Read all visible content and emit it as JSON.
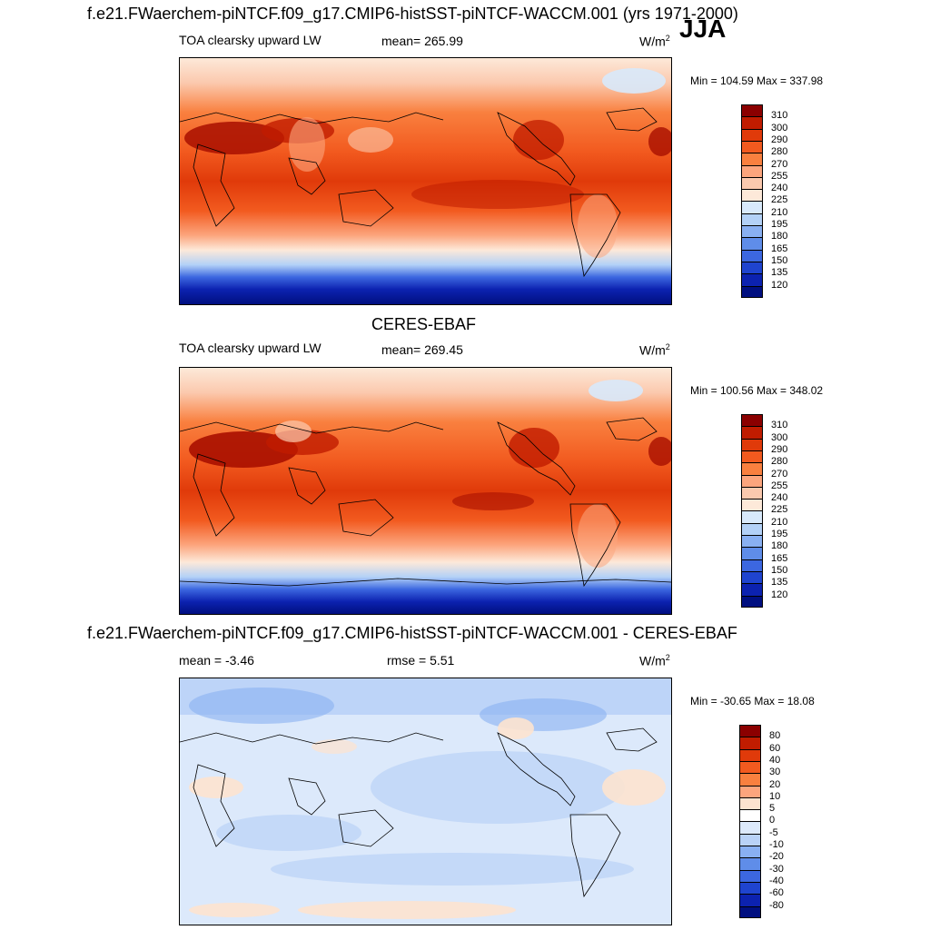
{
  "header": {
    "main_title": "f.e21.FWaerchem-piNTCF.f09_g17.CMIP6-histSST-piNTCF-WACCM.001 (yrs 1971-2000)",
    "season": "JJA"
  },
  "panels": [
    {
      "id": "model",
      "title": "",
      "left_label": "TOA clearsky upward LW",
      "center_label": "mean= 265.99",
      "rmse_label": "",
      "units_base": "W/m",
      "units_exp": "2",
      "minmax": "Min = 104.59 Max = 337.98",
      "colorbar": {
        "ticks": [
          "310",
          "300",
          "290",
          "280",
          "270",
          "255",
          "240",
          "225",
          "210",
          "195",
          "180",
          "165",
          "150",
          "135",
          "120"
        ],
        "colors": [
          "#8b0000",
          "#c01c00",
          "#e03a0a",
          "#f25a1f",
          "#f9803f",
          "#fca57d",
          "#fbc9ae",
          "#fde9d9",
          "#d8e9fb",
          "#b3d1f7",
          "#89b0f2",
          "#5f8de9",
          "#3c67e0",
          "#1f44cf",
          "#0c22b0",
          "#000f80"
        ]
      }
    },
    {
      "id": "obs",
      "title": "CERES-EBAF",
      "left_label": "TOA clearsky upward LW",
      "center_label": "mean= 269.45",
      "rmse_label": "",
      "units_base": "W/m",
      "units_exp": "2",
      "minmax": "Min = 100.56 Max = 348.02",
      "colorbar": {
        "ticks": [
          "310",
          "300",
          "290",
          "280",
          "270",
          "255",
          "240",
          "225",
          "210",
          "195",
          "180",
          "165",
          "150",
          "135",
          "120"
        ],
        "colors": [
          "#8b0000",
          "#c01c00",
          "#e03a0a",
          "#f25a1f",
          "#f9803f",
          "#fca57d",
          "#fbc9ae",
          "#fde9d9",
          "#d8e9fb",
          "#b3d1f7",
          "#89b0f2",
          "#5f8de9",
          "#3c67e0",
          "#1f44cf",
          "#0c22b0",
          "#000f80"
        ]
      }
    },
    {
      "id": "diff",
      "title": "f.e21.FWaerchem-piNTCF.f09_g17.CMIP6-histSST-piNTCF-WACCM.001 - CERES-EBAF",
      "left_label": "mean =  -3.46",
      "center_label": "rmse =   5.51",
      "rmse_label": "",
      "units_base": "W/m",
      "units_exp": "2",
      "minmax": "Min = -30.65 Max =  18.08",
      "colorbar": {
        "ticks": [
          "80",
          "60",
          "40",
          "30",
          "20",
          "10",
          "5",
          "0",
          "-5",
          "-10",
          "-20",
          "-30",
          "-40",
          "-60",
          "-80"
        ],
        "colors": [
          "#8b0000",
          "#c01c00",
          "#e03a0a",
          "#f25a1f",
          "#f9803f",
          "#fca57d",
          "#fde3cf",
          "#ffffff",
          "#dce9fb",
          "#b9d2f7",
          "#89b0f2",
          "#5f8de9",
          "#3c67e0",
          "#1f44cf",
          "#0c22b0",
          "#000f80"
        ]
      }
    }
  ]
}
